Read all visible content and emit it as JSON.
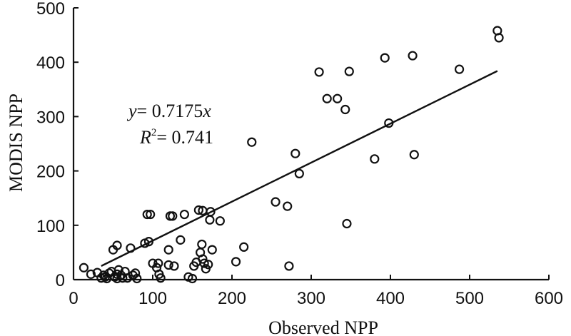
{
  "chart_data": {
    "type": "scatter",
    "xlabel": "Observed NPP",
    "ylabel": "MODIS NPP",
    "xlim": [
      0,
      600
    ],
    "ylim": [
      0,
      500
    ],
    "x_ticks": [
      0,
      100,
      200,
      300,
      400,
      500,
      600
    ],
    "y_ticks": [
      0,
      100,
      200,
      300,
      400,
      500
    ],
    "grid": false,
    "annotation": {
      "equation_prefix": "y",
      "equation_rest": "= 0.7175",
      "equation_var": "x",
      "r2_label": "R",
      "r2_sup": "2",
      "r2_rest": "= 0.741"
    },
    "fit_line": {
      "slope": 0.7175,
      "x_range": [
        35,
        535
      ]
    },
    "points": [
      {
        "x": 13,
        "y": 22
      },
      {
        "x": 22,
        "y": 10
      },
      {
        "x": 30,
        "y": 13
      },
      {
        "x": 35,
        "y": 3
      },
      {
        "x": 38,
        "y": 8
      },
      {
        "x": 40,
        "y": 5
      },
      {
        "x": 42,
        "y": 2
      },
      {
        "x": 45,
        "y": 12
      },
      {
        "x": 48,
        "y": 15
      },
      {
        "x": 52,
        "y": 5
      },
      {
        "x": 55,
        "y": 2
      },
      {
        "x": 55,
        "y": 10
      },
      {
        "x": 57,
        "y": 18
      },
      {
        "x": 60,
        "y": 8
      },
      {
        "x": 62,
        "y": 3
      },
      {
        "x": 65,
        "y": 15
      },
      {
        "x": 68,
        "y": 3
      },
      {
        "x": 75,
        "y": 8
      },
      {
        "x": 78,
        "y": 12
      },
      {
        "x": 80,
        "y": 2
      },
      {
        "x": 50,
        "y": 55
      },
      {
        "x": 55,
        "y": 63
      },
      {
        "x": 72,
        "y": 58
      },
      {
        "x": 90,
        "y": 67
      },
      {
        "x": 95,
        "y": 70
      },
      {
        "x": 93,
        "y": 120
      },
      {
        "x": 97,
        "y": 120
      },
      {
        "x": 122,
        "y": 117
      },
      {
        "x": 125,
        "y": 117
      },
      {
        "x": 140,
        "y": 120
      },
      {
        "x": 135,
        "y": 73
      },
      {
        "x": 120,
        "y": 55
      },
      {
        "x": 100,
        "y": 30
      },
      {
        "x": 105,
        "y": 22
      },
      {
        "x": 107,
        "y": 30
      },
      {
        "x": 108,
        "y": 10
      },
      {
        "x": 110,
        "y": 3
      },
      {
        "x": 120,
        "y": 27
      },
      {
        "x": 127,
        "y": 25
      },
      {
        "x": 145,
        "y": 5
      },
      {
        "x": 150,
        "y": 2
      },
      {
        "x": 152,
        "y": 25
      },
      {
        "x": 155,
        "y": 32
      },
      {
        "x": 160,
        "y": 50
      },
      {
        "x": 162,
        "y": 65
      },
      {
        "x": 163,
        "y": 38
      },
      {
        "x": 165,
        "y": 30
      },
      {
        "x": 167,
        "y": 20
      },
      {
        "x": 170,
        "y": 28
      },
      {
        "x": 175,
        "y": 55
      },
      {
        "x": 158,
        "y": 128
      },
      {
        "x": 163,
        "y": 127
      },
      {
        "x": 173,
        "y": 125
      },
      {
        "x": 172,
        "y": 110
      },
      {
        "x": 185,
        "y": 108
      },
      {
        "x": 205,
        "y": 33
      },
      {
        "x": 215,
        "y": 60
      },
      {
        "x": 225,
        "y": 253
      },
      {
        "x": 255,
        "y": 143
      },
      {
        "x": 270,
        "y": 135
      },
      {
        "x": 272,
        "y": 25
      },
      {
        "x": 280,
        "y": 232
      },
      {
        "x": 285,
        "y": 195
      },
      {
        "x": 310,
        "y": 382
      },
      {
        "x": 320,
        "y": 333
      },
      {
        "x": 333,
        "y": 333
      },
      {
        "x": 343,
        "y": 313
      },
      {
        "x": 348,
        "y": 383
      },
      {
        "x": 345,
        "y": 103
      },
      {
        "x": 380,
        "y": 222
      },
      {
        "x": 393,
        "y": 408
      },
      {
        "x": 398,
        "y": 288
      },
      {
        "x": 428,
        "y": 412
      },
      {
        "x": 430,
        "y": 230
      },
      {
        "x": 487,
        "y": 387
      },
      {
        "x": 535,
        "y": 458
      },
      {
        "x": 537,
        "y": 445
      }
    ]
  }
}
